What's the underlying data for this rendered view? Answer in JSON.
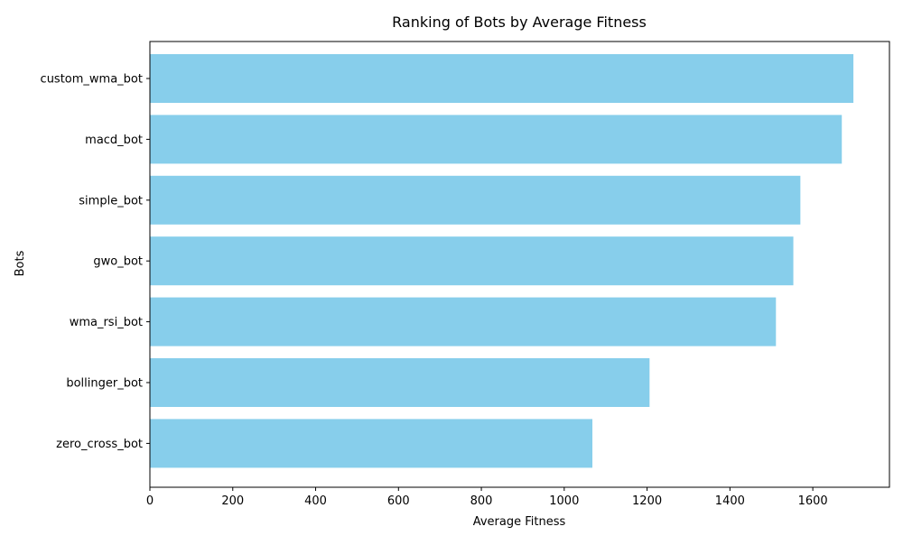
{
  "chart_data": {
    "type": "bar",
    "orientation": "horizontal",
    "title": "Ranking of Bots by Average Fitness",
    "xlabel": "Average Fitness",
    "ylabel": "Bots",
    "categories": [
      "custom_wma_bot",
      "macd_bot",
      "simple_bot",
      "gwo_bot",
      "wma_rsi_bot",
      "bollinger_bot",
      "zero_cross_bot"
    ],
    "values": [
      1698,
      1670,
      1570,
      1553,
      1511,
      1206,
      1068
    ],
    "xlim": [
      0,
      1785
    ],
    "xticks": [
      0,
      200,
      400,
      600,
      800,
      1000,
      1200,
      1400,
      1600
    ],
    "bar_color": "#87ceeb",
    "grid": false,
    "legend": false
  }
}
